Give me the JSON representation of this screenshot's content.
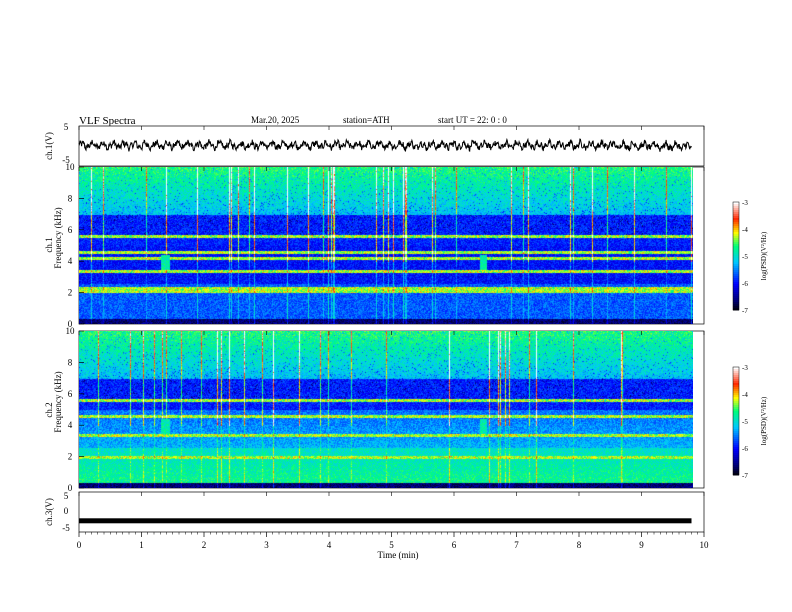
{
  "header": {
    "title": "VLF  Spectra",
    "date": "Mar.20, 2025",
    "station": "station=ATH",
    "start": "start  UT  =    22: 0   : 0"
  },
  "colorbar": {
    "label": "log(PSD)(V²/Hz)",
    "ticks": [
      "-3",
      "-4",
      "-5",
      "-6",
      "-7"
    ],
    "range": [
      -7,
      -3
    ]
  },
  "chart_data": [
    {
      "type": "line",
      "name": "ch1-waveform",
      "ylabel": "ch.1(V)",
      "ylim": [
        -5,
        5
      ],
      "ytick_labels": [
        "5",
        "-5"
      ],
      "x_range_min": [
        0,
        9.8
      ],
      "level_mean": 0.2
    },
    {
      "type": "heatmap",
      "name": "ch1-spectrogram",
      "ylabel": "ch.1\nFrequency  (kHz)",
      "ylim": [
        0,
        10
      ],
      "ytick_labels": [
        "10",
        "8",
        "6",
        "4",
        "2",
        "0"
      ],
      "x_range_min": [
        0,
        9.8
      ],
      "strong_bands_khz": [
        2.1,
        2.3,
        3.4,
        4.2,
        4.6,
        5.6
      ],
      "tone_windows_min": [
        [
          1.3,
          1.45
        ],
        [
          6.4,
          6.5
        ]
      ]
    },
    {
      "type": "heatmap",
      "name": "ch2-spectrogram",
      "ylabel": "ch.2\nFrequency  (kHz)",
      "ylim": [
        0,
        10
      ],
      "ytick_labels": [
        "10",
        "8",
        "6",
        "4",
        "2",
        "0"
      ],
      "x_range_min": [
        0,
        9.8
      ],
      "strong_bands_khz": [
        2.0,
        3.4,
        4.6,
        5.6
      ],
      "tone_windows_min": [
        [
          1.3,
          1.45
        ],
        [
          6.4,
          6.5
        ]
      ]
    },
    {
      "type": "line",
      "name": "ch3-waveform",
      "ylabel": "ch.3(V)",
      "ylim": [
        -5,
        5
      ],
      "ytick_labels": [
        "5",
        "0",
        "-5"
      ],
      "x_range_min": [
        0,
        9.8
      ],
      "level_mean": -2.2
    }
  ],
  "xaxis": {
    "label": "Time  (min)",
    "range": [
      0,
      10
    ],
    "tick_labels": [
      "0",
      "1",
      "2",
      "3",
      "4",
      "5",
      "6",
      "7",
      "8",
      "9",
      "10"
    ]
  }
}
